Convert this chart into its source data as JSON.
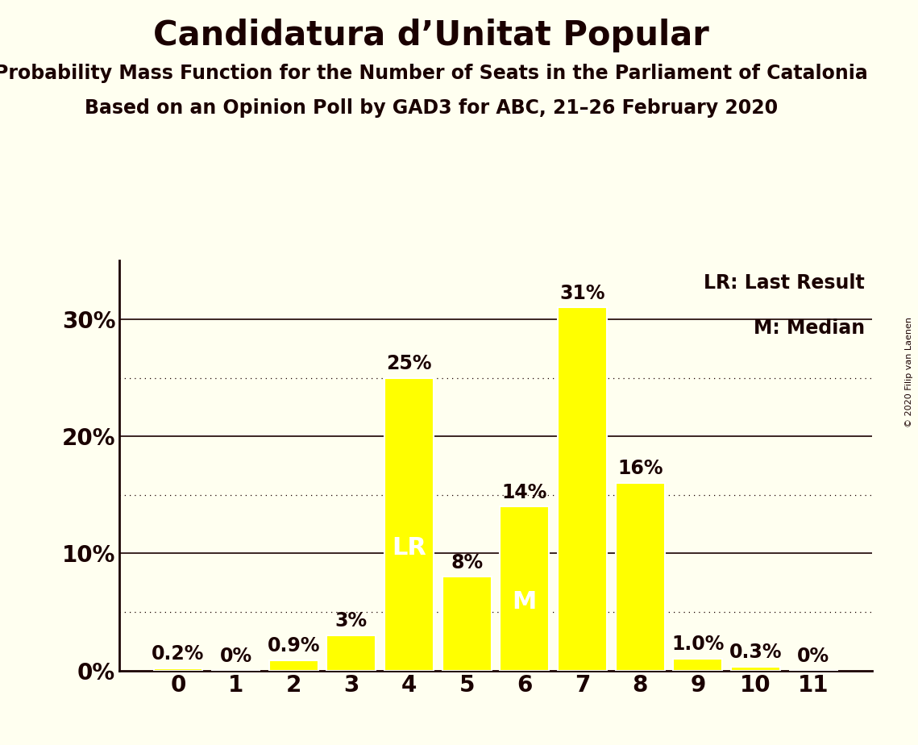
{
  "title": "Candidatura d’Unitat Popular",
  "subtitle1": "Probability Mass Function for the Number of Seats in the Parliament of Catalonia",
  "subtitle2": "Based on an Opinion Poll by GAD3 for ABC, 21–26 February 2020",
  "copyright": "© 2020 Filip van Laenen",
  "categories": [
    0,
    1,
    2,
    3,
    4,
    5,
    6,
    7,
    8,
    9,
    10,
    11
  ],
  "values": [
    0.2,
    0.0,
    0.9,
    3.0,
    25.0,
    8.0,
    14.0,
    31.0,
    16.0,
    1.0,
    0.3,
    0.0
  ],
  "bar_color": "#FFFF00",
  "bar_edge_color": "#FFFFFF",
  "background_color": "#FFFFF0",
  "text_color": "#1a0000",
  "yticks": [
    0,
    10,
    20,
    30
  ],
  "ylim": [
    0,
    35
  ],
  "lr_seat": 4,
  "median_seat": 6,
  "legend_lr": "LR: Last Result",
  "legend_m": "M: Median",
  "bar_labels": [
    "0.2%",
    "0%",
    "0.9%",
    "3%",
    "25%",
    "8%",
    "14%",
    "31%",
    "16%",
    "1.0%",
    "0.3%",
    "0%"
  ],
  "title_fontsize": 30,
  "subtitle_fontsize": 17,
  "axis_label_fontsize": 20,
  "bar_label_fontsize": 17,
  "legend_fontsize": 17,
  "lr_label": "LR",
  "m_label": "M",
  "lr_label_fontsize": 22,
  "m_label_fontsize": 22,
  "solid_grid": [
    10,
    20,
    30
  ],
  "dotted_grid": [
    5,
    15,
    25
  ],
  "copyright_fontsize": 8
}
